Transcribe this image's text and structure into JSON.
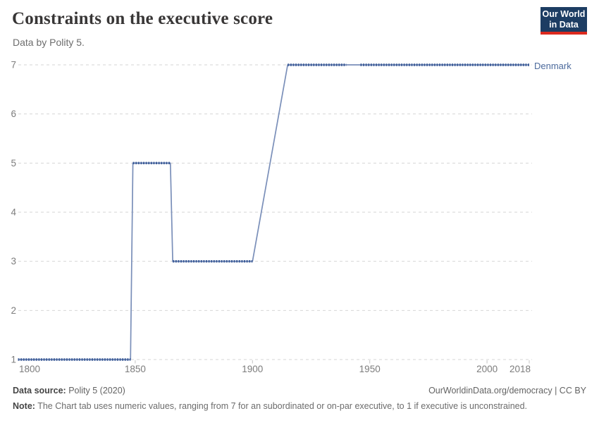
{
  "header": {
    "title": "Constraints on the executive score",
    "subtitle": "Data by Polity 5.",
    "logo": {
      "line1": "Our World",
      "line2": "in Data"
    }
  },
  "chart_data": {
    "type": "line",
    "title": "Constraints on the executive score",
    "xlabel": "",
    "ylabel": "",
    "x_range": [
      1800,
      2018
    ],
    "y_range": [
      1,
      7
    ],
    "x_ticks": [
      1800,
      1850,
      1900,
      1950,
      2000,
      2018
    ],
    "y_ticks": [
      1,
      2,
      3,
      4,
      5,
      6,
      7
    ],
    "grid": true,
    "legend_position": "right-end-of-line",
    "series": [
      {
        "name": "Denmark",
        "points": [
          [
            1800,
            1
          ],
          [
            1848,
            1
          ],
          [
            1849,
            5
          ],
          [
            1865,
            5
          ],
          [
            1866,
            3
          ],
          [
            1900,
            3
          ],
          [
            1915,
            7
          ],
          [
            2018,
            7
          ]
        ],
        "steps": [
          {
            "from": 1800,
            "to": 1848,
            "value": 1
          },
          {
            "from": 1849,
            "to": 1865,
            "value": 5
          },
          {
            "from": 1866,
            "to": 1900,
            "value": 3
          },
          {
            "from": 1901,
            "to": 1914,
            "value": "linear transition 3 to 7"
          },
          {
            "from": 1915,
            "to": 2018,
            "value": 7
          }
        ],
        "marker_runs": [
          [
            1800,
            1848,
            1
          ],
          [
            1849,
            1865,
            5
          ],
          [
            1866,
            1900,
            3
          ],
          [
            1915,
            1940,
            7
          ],
          [
            1946,
            2018,
            7
          ]
        ]
      }
    ]
  },
  "footer": {
    "source_label": "Data source:",
    "source_value": "Polity 5 (2020)",
    "credit": "OurWorldinData.org/democracy | CC BY",
    "note_label": "Note:",
    "note_text": "The Chart tab uses numeric values, ranging from 7 for an subordinated or on-par executive, to 1 if executive is unconstrained."
  },
  "colors": {
    "line": "#4c6a9c",
    "line_base": "#7a8fb9",
    "line_marker": "#3f5e99",
    "grid": "#d6d6d6",
    "tick": "#c4c4c4",
    "axis_text": "#7c7c7c",
    "logo_bg": "#1d3d63",
    "logo_red": "#dc2a1e",
    "entity_label": "#4c6a9c"
  }
}
